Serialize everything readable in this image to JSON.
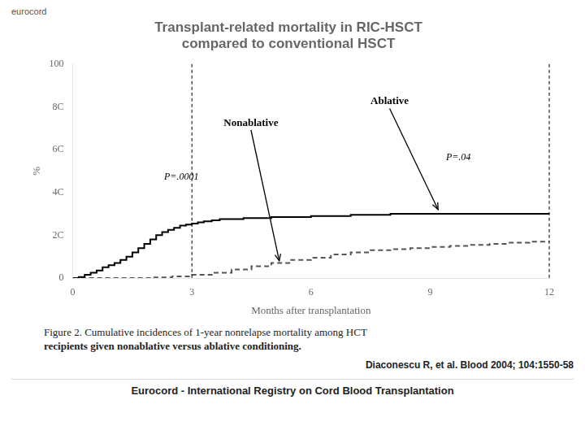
{
  "chart_data": {
    "type": "step",
    "logo": "eurocord",
    "title": [
      "Transplant-related mortality in RIC-HSCT",
      "compared to conventional HSCT"
    ],
    "x_label": "Months after transplantation",
    "y_label": "%",
    "xlim": [
      0,
      12
    ],
    "ylim": [
      0,
      100
    ],
    "xticks": [
      0,
      3,
      6,
      9,
      12
    ],
    "yticks": [
      0,
      {
        "value": 20,
        "label": "2C"
      },
      {
        "value": 40,
        "label": "4C"
      },
      {
        "value": 60,
        "label": "6C"
      },
      {
        "value": 80,
        "label": "8C"
      },
      100
    ],
    "grid": false,
    "series": [
      {
        "name": "Ablative",
        "color": "#000000",
        "line_style": "solid",
        "x": [
          0,
          0.15,
          0.3,
          0.45,
          0.6,
          0.75,
          0.9,
          1.05,
          1.2,
          1.35,
          1.5,
          1.65,
          1.8,
          1.95,
          2.1,
          2.25,
          2.4,
          2.55,
          2.7,
          2.85,
          3.0,
          3.15,
          3.3,
          3.5,
          3.7,
          4.0,
          4.3,
          4.6,
          5.0,
          5.5,
          6.0,
          6.5,
          7.0,
          7.5,
          8.0,
          8.5,
          9.0,
          9.5,
          10.0,
          11.0,
          12.0
        ],
        "values": [
          0,
          0.5,
          1.5,
          2.5,
          3.5,
          5,
          6,
          7,
          8.5,
          10,
          12,
          14,
          16,
          18,
          20,
          21.5,
          22.5,
          23.5,
          24.5,
          25,
          25.5,
          26,
          26.5,
          27,
          27.5,
          27.5,
          28,
          28,
          28.5,
          28.5,
          29,
          29,
          29.5,
          29.5,
          30,
          30,
          30,
          30,
          30,
          30,
          30
        ]
      },
      {
        "name": "Nonablative",
        "color": "#555555",
        "line_style": "dashed",
        "x": [
          0,
          0.5,
          1.0,
          1.5,
          2.0,
          2.5,
          3.0,
          3.5,
          4.0,
          4.5,
          5.0,
          5.5,
          6.0,
          6.5,
          7.0,
          7.5,
          8.0,
          8.5,
          9.0,
          9.5,
          10.0,
          10.5,
          11.0,
          11.5,
          12.0
        ],
        "values": [
          0,
          0,
          0,
          0,
          0.3,
          0.8,
          1.5,
          2.5,
          4,
          5.5,
          7,
          8.5,
          9.5,
          11,
          12,
          13,
          13.5,
          14,
          14.5,
          15,
          15.5,
          16,
          16.5,
          17,
          17.5
        ]
      }
    ],
    "vlines": [
      3.0,
      12.0
    ],
    "annotations": [
      {
        "text": "P=.0001",
        "x": 2.3,
        "y": 46
      },
      {
        "text": "P=.04",
        "x": 9.4,
        "y": 55
      },
      {
        "text": "Ablative",
        "x": 7.5,
        "y": 80,
        "arrow_to": [
          9.2,
          32
        ]
      },
      {
        "text": "Nonablative",
        "x": 3.8,
        "y": 70,
        "arrow_to": [
          5.2,
          8
        ]
      }
    ],
    "caption": [
      "Figure 2. Cumulative incidences of 1-year nonrelapse mortality among HCT",
      "recipients given nonablative versus ablative conditioning."
    ],
    "source": "Diaconescu R, et al. Blood 2004; 104:1550-58",
    "footer": "Eurocord - International Registry on Cord Blood Transplantation"
  }
}
